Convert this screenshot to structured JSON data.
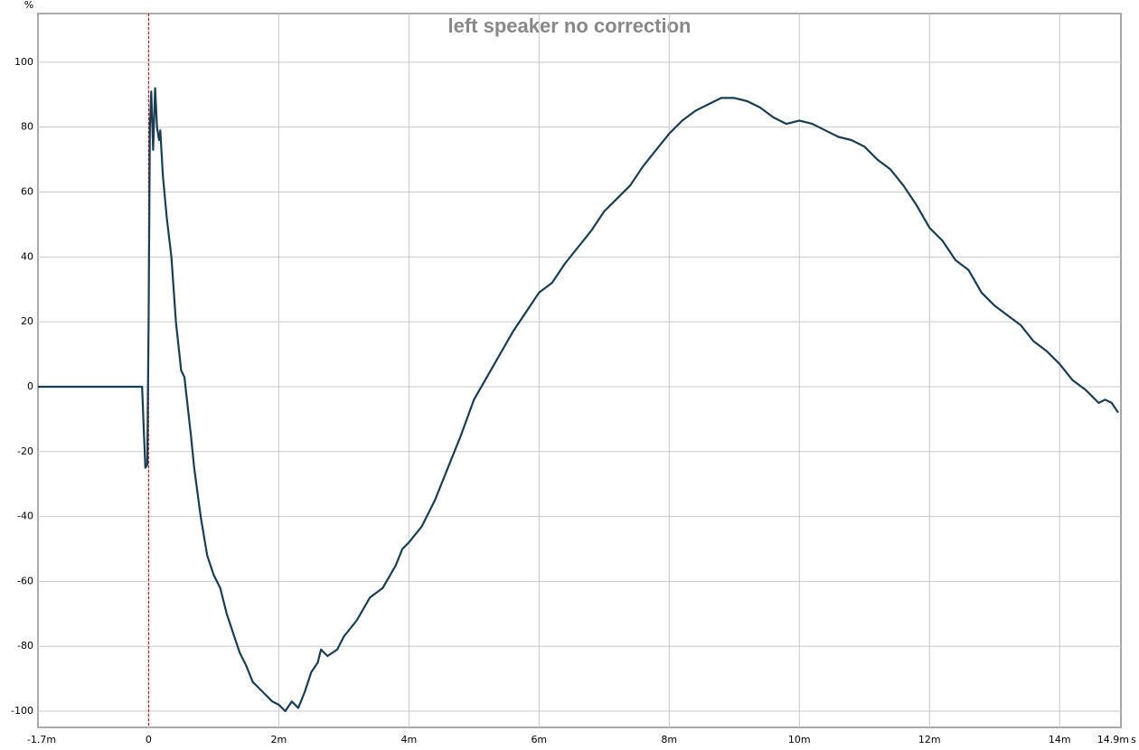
{
  "chart_data": {
    "type": "line",
    "title": "left speaker no correction",
    "y_unit": "%",
    "x_unit": "s",
    "x": [
      -1.7,
      -0.1,
      -0.08,
      -0.05,
      -0.02,
      0,
      0.02,
      0.04,
      0.07,
      0.1,
      0.13,
      0.16,
      0.18,
      0.22,
      0.28,
      0.35,
      0.42,
      0.5,
      0.55,
      0.6,
      0.65,
      0.7,
      0.8,
      0.9,
      1.0,
      1.1,
      1.2,
      1.3,
      1.4,
      1.5,
      1.6,
      1.7,
      1.8,
      1.9,
      2.0,
      2.1,
      2.2,
      2.3,
      2.4,
      2.5,
      2.6,
      2.65,
      2.75,
      2.9,
      3.0,
      3.2,
      3.4,
      3.6,
      3.8,
      3.9,
      4.0,
      4.2,
      4.4,
      4.6,
      4.8,
      5.0,
      5.2,
      5.4,
      5.6,
      5.8,
      6.0,
      6.2,
      6.4,
      6.6,
      6.8,
      7.0,
      7.2,
      7.4,
      7.6,
      7.8,
      8.0,
      8.2,
      8.4,
      8.6,
      8.8,
      9.0,
      9.2,
      9.4,
      9.6,
      9.8,
      10.0,
      10.2,
      10.4,
      10.6,
      10.8,
      11.0,
      11.2,
      11.4,
      11.6,
      11.8,
      12.0,
      12.2,
      12.4,
      12.6,
      12.8,
      13.0,
      13.2,
      13.4,
      13.6,
      13.8,
      14.0,
      14.2,
      14.4,
      14.6,
      14.7,
      14.8,
      14.9
    ],
    "series": [
      {
        "color": "#1b3d52",
        "values": [
          0,
          0,
          -10,
          -25,
          -24,
          20,
          80,
          91,
          73,
          92,
          80,
          76,
          79,
          65,
          52,
          40,
          20,
          5,
          3,
          -6,
          -15,
          -25,
          -40,
          -52,
          -58,
          -62,
          -70,
          -76,
          -82,
          -86,
          -91,
          -93,
          -95,
          -97,
          -98,
          -100,
          -97,
          -99,
          -94,
          -88,
          -85,
          -81,
          -83,
          -81,
          -77,
          -72,
          -65,
          -62,
          -55,
          -50,
          -48,
          -43,
          -35,
          -25,
          -15,
          -4,
          3,
          10,
          17,
          23,
          29,
          32,
          38,
          43,
          48,
          54,
          58,
          62,
          68,
          73,
          78,
          82,
          85,
          87,
          89,
          89,
          88,
          86,
          83,
          81,
          82,
          81,
          79,
          77,
          76,
          74,
          70,
          67,
          62,
          56,
          49,
          45,
          39,
          36,
          29,
          25,
          22,
          19,
          14,
          11,
          7,
          2,
          -1,
          -5,
          -4,
          -5,
          -8
        ]
      }
    ],
    "xlim": [
      -1.7,
      14.9
    ],
    "xticks": [
      {
        "value": -1.7,
        "label": "-1.7m"
      },
      0,
      {
        "value": 2,
        "label": "2m"
      },
      {
        "value": 4,
        "label": "4m"
      },
      {
        "value": 6,
        "label": "6m"
      },
      {
        "value": 8,
        "label": "8m"
      },
      {
        "value": 10,
        "label": "10m"
      },
      {
        "value": 12,
        "label": "12m"
      },
      {
        "value": 14,
        "label": "14m"
      },
      {
        "value": 14.9,
        "label": "14.9m"
      }
    ],
    "ylim": [
      -105,
      115
    ],
    "yticks": [
      -100,
      -80,
      -60,
      -40,
      -20,
      0,
      20,
      40,
      60,
      80,
      100
    ],
    "grid": true
  }
}
